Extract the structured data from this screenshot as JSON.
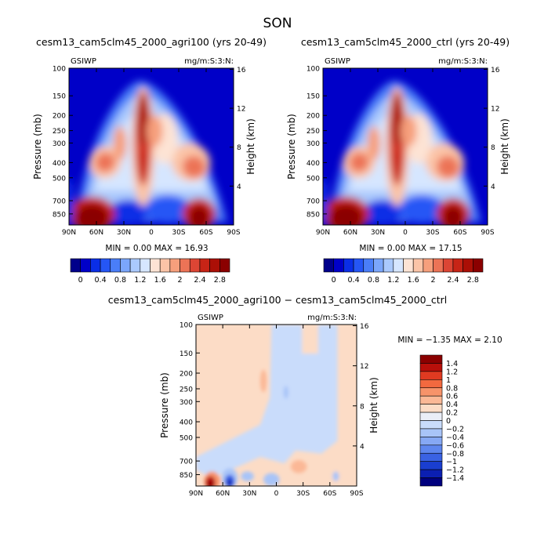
{
  "season": "SON",
  "chart_data": [
    {
      "type": "heatmap",
      "title": "cesm13_cam5clm45_2000_agri100 (yrs 20-49)",
      "variable": "GSIWP",
      "units": "mg/m:S:3:N:",
      "ylabel": "Pressure (mb)",
      "y2label": "Height (km)",
      "x_ticks": [
        "90N",
        "60N",
        "30N",
        "0",
        "30S",
        "60S",
        "90S"
      ],
      "y_ticks": [
        "100",
        "150",
        "200",
        "250",
        "300",
        "400",
        "500",
        "700",
        "850"
      ],
      "y2_ticks": [
        "16",
        "12",
        "8",
        "4"
      ],
      "stats": "MIN =    0.00   MAX =   16.93",
      "colorbar_labels": [
        "0",
        "0.4",
        "0.8",
        "1.2",
        "1.6",
        "2",
        "2.4",
        "2.8"
      ],
      "xlim": [
        90,
        -90
      ],
      "ylim": [
        100,
        1000
      ],
      "max": 16.93
    },
    {
      "type": "heatmap",
      "title": "cesm13_cam5clm45_2000_ctrl (yrs 20-49)",
      "variable": "GSIWP",
      "units": "mg/m:S:3:N:",
      "ylabel": "Pressure (mb)",
      "y2label": "Height (km)",
      "x_ticks": [
        "90N",
        "60N",
        "30N",
        "0",
        "30S",
        "60S",
        "90S"
      ],
      "y_ticks": [
        "100",
        "150",
        "200",
        "250",
        "300",
        "400",
        "500",
        "700",
        "850"
      ],
      "y2_ticks": [
        "16",
        "12",
        "8",
        "4"
      ],
      "stats": "MIN =    0.00   MAX =   17.15",
      "colorbar_labels": [
        "0",
        "0.4",
        "0.8",
        "1.2",
        "1.6",
        "2",
        "2.4",
        "2.8"
      ],
      "xlim": [
        90,
        -90
      ],
      "ylim": [
        100,
        1000
      ],
      "max": 17.15
    },
    {
      "type": "heatmap",
      "title": "cesm13_cam5clm45_2000_agri100 − cesm13_cam5clm45_2000_ctrl",
      "variable": "GSIWP",
      "units": "mg/m:S:3:N:",
      "ylabel": "Pressure (mb)",
      "y2label": "Height (km)",
      "x_ticks": [
        "90N",
        "60N",
        "30N",
        "0",
        "30S",
        "60S",
        "90S"
      ],
      "y_ticks": [
        "100",
        "150",
        "200",
        "250",
        "300",
        "400",
        "500",
        "700",
        "850"
      ],
      "y2_ticks": [
        "16",
        "12",
        "8",
        "4"
      ],
      "stats": "MIN =   −1.35   MAX =    2.10",
      "colorbar_labels": [
        "1.4",
        "1.2",
        "1",
        "0.8",
        "0.6",
        "0.4",
        "0.2",
        "0",
        "−0.2",
        "−0.4",
        "−0.6",
        "−0.8",
        "−1",
        "−1.2",
        "−1.4"
      ],
      "xlim": [
        90,
        -90
      ],
      "ylim": [
        100,
        1000
      ],
      "min": -1.35,
      "max": 2.1
    }
  ],
  "colors": {
    "seq_scale": [
      "#00008b",
      "#0000c8",
      "#0a2ee6",
      "#2556f5",
      "#4a7ef8",
      "#7ba6fb",
      "#aac9fd",
      "#d6e6ff",
      "#fde3d4",
      "#fbc4a7",
      "#f69f7c",
      "#ec7356",
      "#dc4534",
      "#c72416",
      "#ab0f06",
      "#8b0000"
    ],
    "diff_scale": [
      "#8b0000",
      "#b80f0a",
      "#e03a21",
      "#f2693f",
      "#f7936a",
      "#fbb896",
      "#fcdcc6",
      "#eaeef7",
      "#c9dcfb",
      "#a8c4f8",
      "#86a8f4",
      "#5e86ee",
      "#3a62e3",
      "#1a3ed0",
      "#0b1fb2",
      "#00007e"
    ]
  }
}
